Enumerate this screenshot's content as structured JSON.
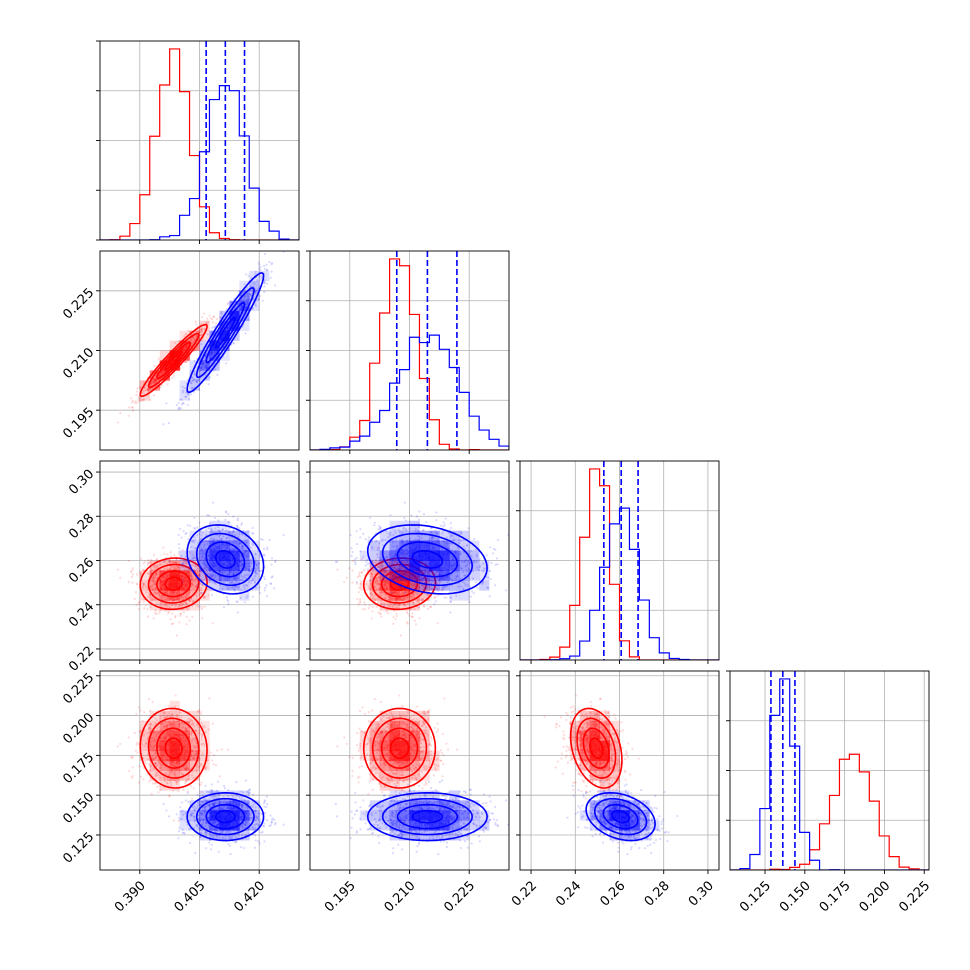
{
  "chart_data": {
    "type": "corner",
    "title": "",
    "parameters": [
      {
        "index": 0,
        "range": [
          0.38,
          0.43
        ],
        "ticks": [
          "0.390",
          "0.405",
          "0.420"
        ]
      },
      {
        "index": 1,
        "range": [
          0.185,
          0.235
        ],
        "ticks": [
          "0.195",
          "0.210",
          "0.225"
        ]
      },
      {
        "index": 2,
        "range": [
          0.215,
          0.305
        ],
        "ticks": [
          "0.22",
          "0.24",
          "0.26",
          "0.28",
          "0.30"
        ]
      },
      {
        "index": 3,
        "range": [
          0.103,
          0.228
        ],
        "ticks": [
          "0.125",
          "0.150",
          "0.175",
          "0.200",
          "0.225"
        ]
      }
    ],
    "series": [
      {
        "name": "",
        "color": "#ff0000",
        "mean": [
          0.3985,
          0.2075,
          0.2495,
          0.1795
        ],
        "std": [
          0.0042,
          0.0045,
          0.0058,
          0.0125
        ],
        "corr": [
          [
            1,
            0.95,
            0.05,
            -0.05
          ],
          [
            0.95,
            1,
            0.05,
            0.0
          ],
          [
            0.05,
            0.05,
            1,
            -0.3
          ],
          [
            -0.05,
            0.0,
            -0.3,
            1
          ]
        ]
      },
      {
        "name": "",
        "color": "#0000ff",
        "mean": [
          0.4115,
          0.2145,
          0.2605,
          0.1365
        ],
        "std": [
          0.0048,
          0.0075,
          0.0078,
          0.0075
        ],
        "corr": [
          [
            1,
            0.95,
            -0.2,
            0.0
          ],
          [
            0.95,
            1,
            -0.25,
            0.0
          ],
          [
            -0.2,
            -0.25,
            1,
            -0.3
          ],
          [
            0.0,
            0.0,
            -0.3,
            1
          ]
        ]
      }
    ],
    "quantile_lines": {
      "series": "#0000ff",
      "quantiles": [
        0.16,
        0.5,
        0.84
      ],
      "style": "dashed"
    },
    "grid": true,
    "legend": "none"
  }
}
